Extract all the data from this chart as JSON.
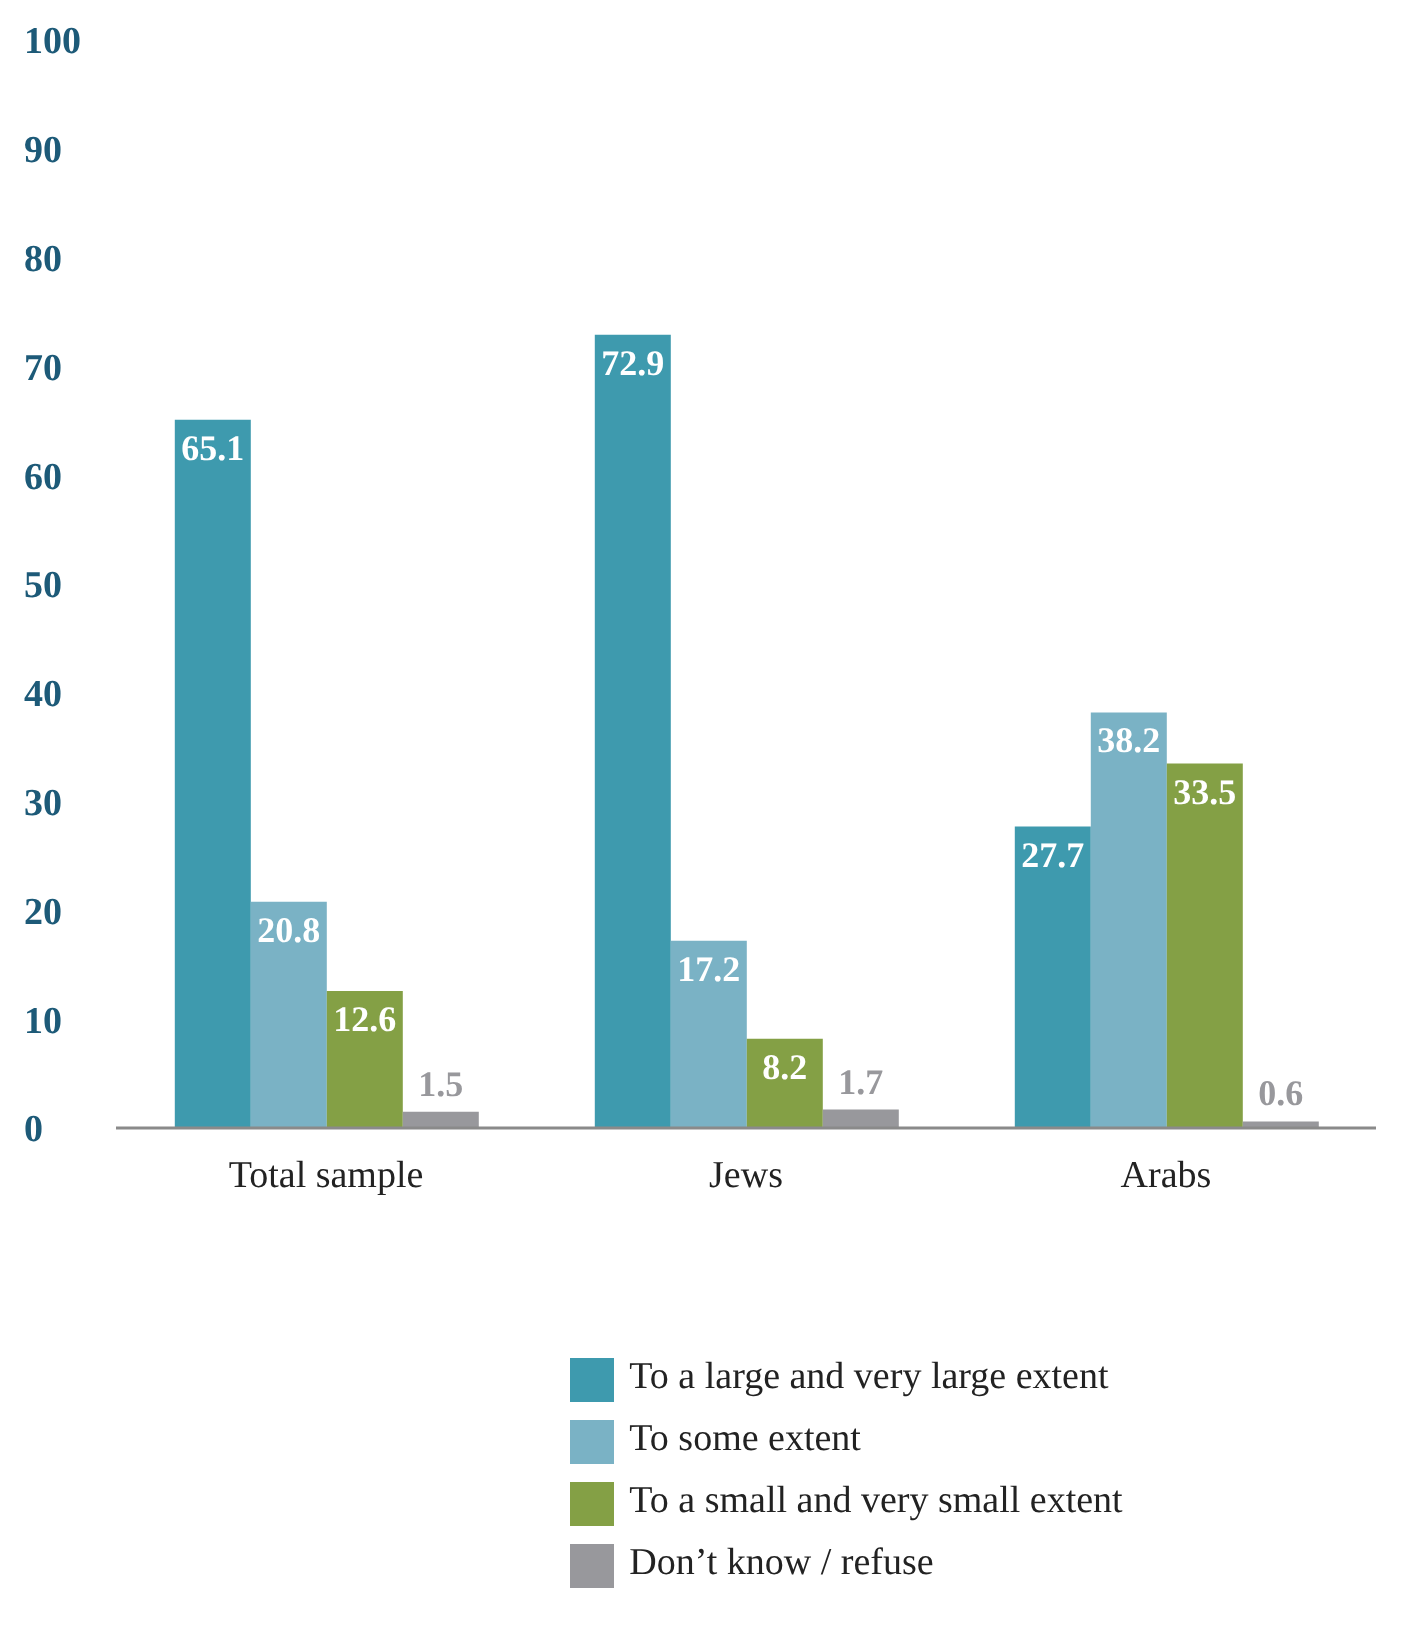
{
  "chart_data": {
    "type": "bar",
    "categories": [
      "Total sample",
      "Jews",
      "Arabs"
    ],
    "series": [
      {
        "name": "To a large and very large extent",
        "color": "#3e9aae",
        "values": [
          65.1,
          72.9,
          27.7
        ]
      },
      {
        "name": "To some extent",
        "color": "#7ab2c5",
        "values": [
          20.8,
          17.2,
          38.2
        ]
      },
      {
        "name": "To a small and very small extent",
        "color": "#84a045",
        "values": [
          12.6,
          8.2,
          33.5
        ]
      },
      {
        "name": "Don’t know / refuse",
        "color": "#98989c",
        "values": [
          1.5,
          1.7,
          0.6
        ]
      }
    ],
    "ylim": [
      0,
      100
    ],
    "yticks": [
      0,
      10,
      20,
      30,
      40,
      50,
      60,
      70,
      80,
      90,
      100
    ],
    "grid": false,
    "legend": "bottom",
    "data_labels": true
  }
}
